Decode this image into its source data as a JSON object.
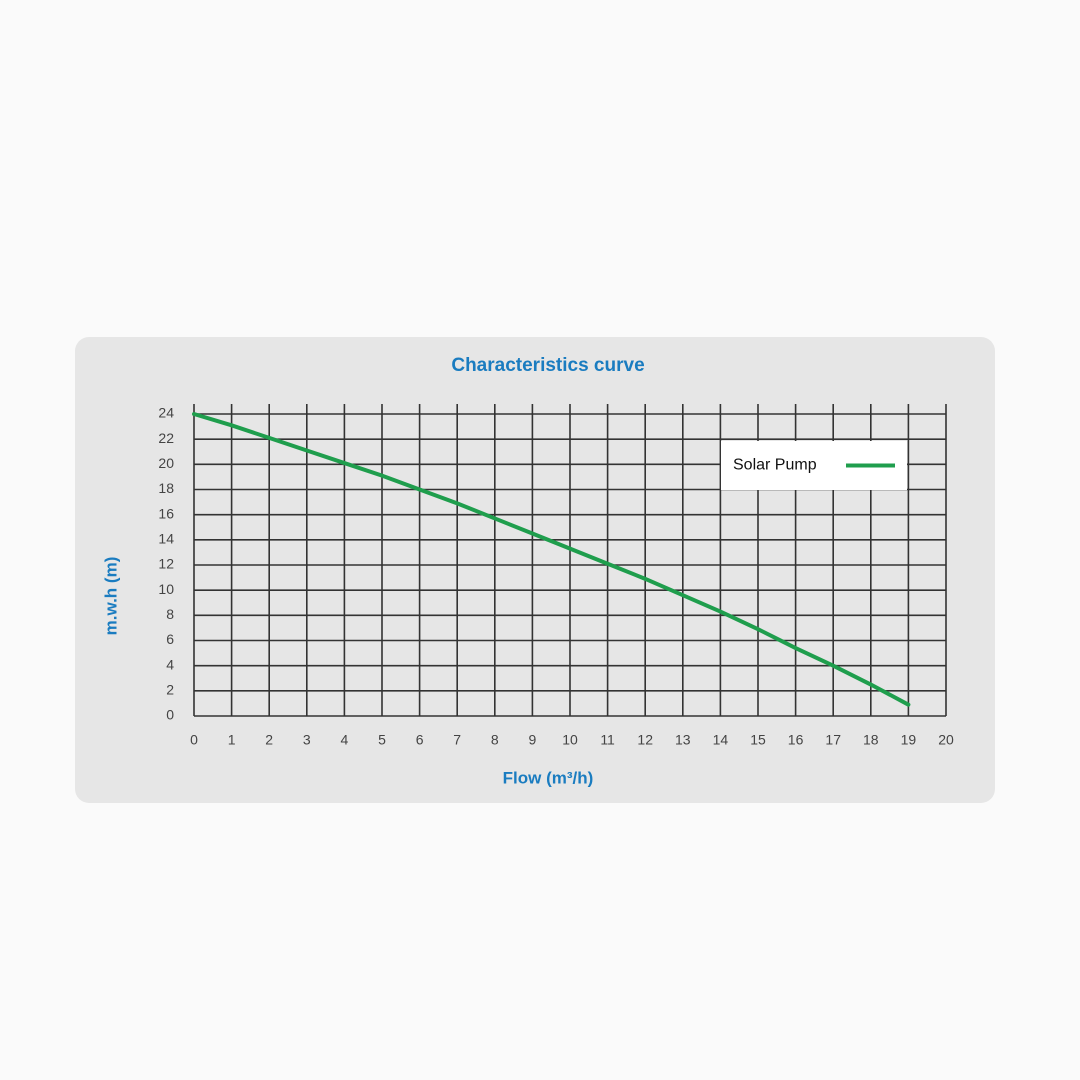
{
  "chart_data": {
    "type": "line",
    "title": "Characteristics curve",
    "x_label": "Flow (m³/h)",
    "y_label": "m.w.h (m)",
    "x": [
      0,
      1,
      2,
      3,
      4,
      5,
      6,
      7,
      8,
      9,
      10,
      11,
      12,
      13,
      14,
      15,
      16,
      17,
      18,
      19
    ],
    "series": [
      {
        "name": "Solar Pump",
        "color": "#1f9e4d",
        "values": [
          24,
          23.1,
          22.1,
          21.1,
          20.1,
          19.1,
          18,
          16.9,
          15.7,
          14.5,
          13.3,
          12.1,
          10.9,
          9.6,
          8.3,
          6.9,
          5.4,
          4,
          2.5,
          0.9
        ]
      }
    ],
    "xlim": [
      0,
      20
    ],
    "xticks": [
      0,
      1,
      2,
      3,
      4,
      5,
      6,
      7,
      8,
      9,
      10,
      11,
      12,
      13,
      14,
      15,
      16,
      17,
      18,
      19,
      20
    ],
    "ylim": [
      0,
      24
    ],
    "yticks": [
      0,
      2,
      4,
      6,
      8,
      10,
      12,
      14,
      16,
      18,
      20,
      22,
      24
    ],
    "grid": true,
    "legend": "upper right"
  }
}
